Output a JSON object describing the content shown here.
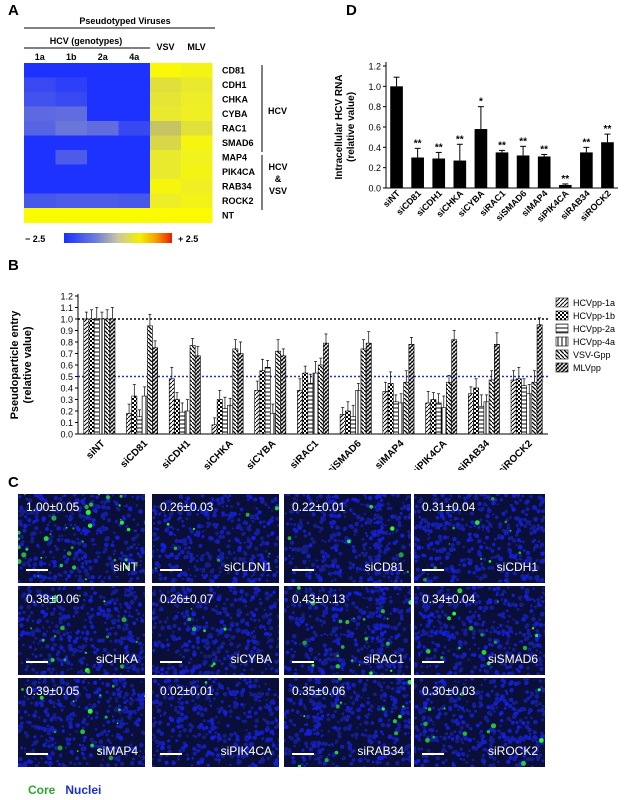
{
  "panels": {
    "a": "A",
    "b": "B",
    "c": "C",
    "d": "D"
  },
  "heatmap": {
    "header": "Pseudotyped Viruses",
    "subheader": "HCV (genotypes)",
    "columns": [
      "1a",
      "1b",
      "2a",
      "4a",
      "VSV",
      "MLV"
    ],
    "rows": [
      "CD81",
      "CDH1",
      "CHKA",
      "CYBA",
      "RAC1",
      "SMAD6",
      "MAP4",
      "PIK4CA",
      "RAB34",
      "ROCK2",
      "NT"
    ],
    "groups": [
      {
        "label": "HCV"
      },
      {
        "label": "HCV & VSV"
      }
    ],
    "group2_lines": [
      "HCV",
      "&",
      "VSV"
    ],
    "scale_min_label": "− 2.5",
    "scale_max_label": "+ 2.5",
    "colors": {
      "low": "#1a2fff",
      "mid_low": "#8a8fc0",
      "mid": "#b8b48a",
      "high": "#f2f200"
    },
    "values": [
      [
        -2.5,
        -2.5,
        -2.5,
        -2.5,
        2.3,
        2.0
      ],
      [
        -2.0,
        -2.2,
        -2.5,
        -2.5,
        1.2,
        1.4
      ],
      [
        -1.8,
        -2.0,
        -2.5,
        -2.5,
        1.3,
        1.5
      ],
      [
        -1.3,
        -1.2,
        -2.5,
        -2.5,
        1.4,
        1.6
      ],
      [
        -1.4,
        -1.0,
        -1.2,
        -2.0,
        0.6,
        1.2
      ],
      [
        -2.5,
        -2.5,
        -2.5,
        -2.5,
        1.0,
        2.1
      ],
      [
        -2.5,
        -1.6,
        -2.5,
        -2.5,
        1.4,
        1.8
      ],
      [
        -2.5,
        -2.5,
        -2.5,
        -2.5,
        1.4,
        2.0
      ],
      [
        -2.5,
        -2.5,
        -2.5,
        -2.5,
        2.2,
        1.6
      ],
      [
        -1.7,
        -1.6,
        -1.6,
        -1.7,
        1.5,
        1.9
      ],
      [
        2.5,
        2.5,
        2.5,
        2.5,
        2.5,
        2.5
      ]
    ]
  },
  "chart_data": [
    {
      "type": "bar",
      "ylabel": "Pseudoparticle entry (relative value)",
      "ylabel_lines": [
        "Pseudoparticle entry",
        "(relative value)"
      ],
      "ylim": [
        0,
        1.2
      ],
      "yticks": [
        "0.0",
        "0.1",
        "0.2",
        "0.3",
        "0.4",
        "0.5",
        "0.6",
        "0.7",
        "0.8",
        "0.9",
        "1.0",
        "1.1",
        "1.2"
      ],
      "reference_lines": [
        1.0,
        0.5
      ],
      "categories": [
        "siNT",
        "siCD81",
        "siCDH1",
        "siCHKA",
        "siCYBA",
        "siRAC1",
        "siSMAD6",
        "siMAP4",
        "siPIK4CA",
        "siRAB34",
        "siROCK2"
      ],
      "series": [
        {
          "name": "HCVpp-1a",
          "values": [
            1.0,
            0.18,
            0.48,
            0.08,
            0.38,
            0.38,
            0.17,
            0.37,
            0.27,
            0.35,
            0.47
          ]
        },
        {
          "name": "HCVpp-1b",
          "values": [
            1.0,
            0.33,
            0.3,
            0.3,
            0.55,
            0.53,
            0.2,
            0.44,
            0.3,
            0.4,
            0.48
          ]
        },
        {
          "name": "HCVpp-2a",
          "values": [
            1.0,
            0.15,
            0.19,
            0.22,
            0.58,
            0.44,
            0.15,
            0.28,
            0.27,
            0.24,
            0.42
          ]
        },
        {
          "name": "HCVpp-4a",
          "values": [
            1.0,
            0.33,
            0.2,
            0.25,
            0.18,
            0.53,
            0.38,
            0.27,
            0.23,
            0.28,
            0.35
          ]
        },
        {
          "name": "VSV-Gpp",
          "values": [
            1.0,
            0.94,
            0.77,
            0.74,
            0.72,
            0.6,
            0.74,
            0.45,
            0.45,
            0.47,
            0.45
          ]
        },
        {
          "name": "MLVpp",
          "values": [
            1.0,
            0.75,
            0.68,
            0.7,
            0.68,
            0.79,
            0.79,
            0.78,
            0.82,
            0.78,
            0.95
          ]
        }
      ]
    },
    {
      "type": "bar",
      "ylabel": "Intracellular HCV RNA (relative value)",
      "ylabel_lines": [
        "Intracellular HCV RNA",
        "(relative value)"
      ],
      "ylim": [
        0,
        1.2
      ],
      "yticks": [
        "0.0",
        "0.2",
        "0.4",
        "0.6",
        "0.8",
        "1.0",
        "1.2"
      ],
      "categories": [
        "siNT",
        "siCD81",
        "siCDH1",
        "siCHKA",
        "siCYBA",
        "siRAC1",
        "siSMAD6",
        "siMAP4",
        "siPIK4CA",
        "siRAB34",
        "siROCK2"
      ],
      "values": [
        1.0,
        0.3,
        0.29,
        0.27,
        0.58,
        0.35,
        0.32,
        0.31,
        0.03,
        0.35,
        0.45
      ],
      "errors": [
        0.09,
        0.09,
        0.06,
        0.16,
        0.22,
        0.02,
        0.09,
        0.02,
        0.01,
        0.05,
        0.08
      ],
      "annotations": [
        "",
        "**",
        "**",
        "**",
        "*",
        "**",
        "**",
        "**",
        "**",
        "**",
        "**"
      ]
    }
  ],
  "micrographs": {
    "items": [
      {
        "value": "1.00±0.05",
        "label": "siNT",
        "density": 0.55
      },
      {
        "value": "0.26±0.03",
        "label": "siCLDN1",
        "density": 0.12
      },
      {
        "value": "0.22±0.01",
        "label": "siCD81",
        "density": 0.1
      },
      {
        "value": "0.31±0.04",
        "label": "siCDH1",
        "density": 0.15
      },
      {
        "value": "0.38±0.06",
        "label": "siCHKA",
        "density": 0.25
      },
      {
        "value": "0.26±0.07",
        "label": "siCYBA",
        "density": 0.12
      },
      {
        "value": "0.43±0.13",
        "label": "siRAC1",
        "density": 0.3
      },
      {
        "value": "0.34±0.04",
        "label": "siSMAD6",
        "density": 0.22
      },
      {
        "value": "0.39±0.05",
        "label": "siMAP4",
        "density": 0.25
      },
      {
        "value": "0.02±0.01",
        "label": "siPIK4CA",
        "density": 0.02
      },
      {
        "value": "0.35±0.06",
        "label": "siRAB34",
        "density": 0.22
      },
      {
        "value": "0.30±0.03",
        "label": "siROCK2",
        "density": 0.18
      }
    ],
    "legend_core": "Core",
    "legend_nuclei": "Nuclei",
    "core_color": "#2fbf2f",
    "nuclei_color": "#1e2fd6"
  }
}
